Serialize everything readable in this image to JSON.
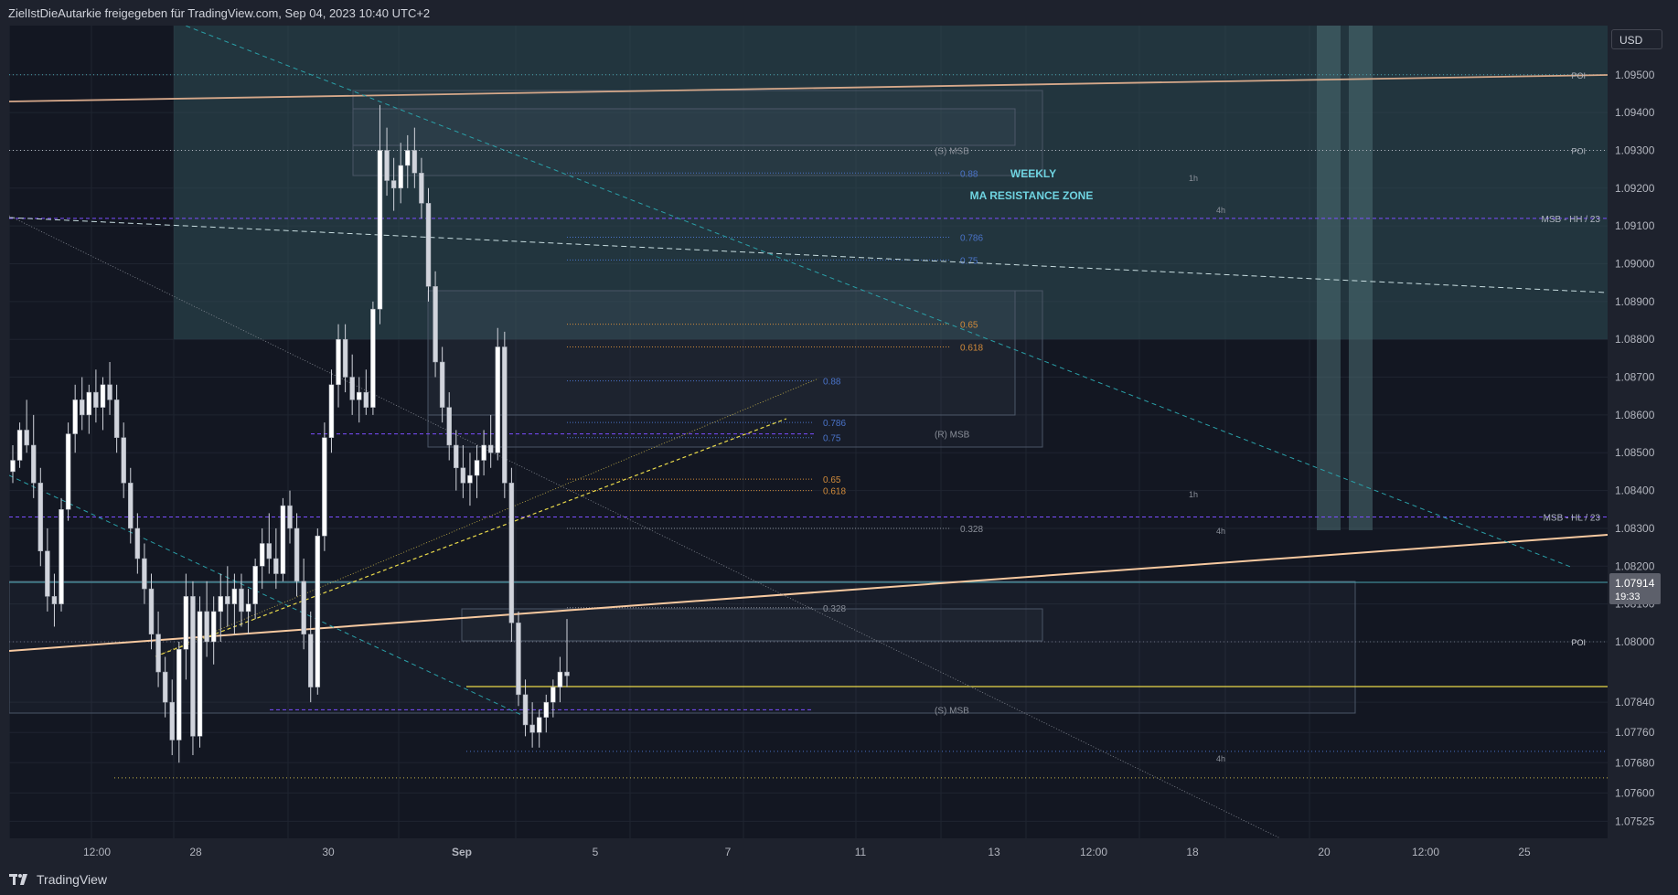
{
  "header": {
    "title": "ZielIstDieAutarkie freigegeben für TradingView.com, Sep 04, 2023 10:40 UTC+2"
  },
  "footer": {
    "brand": "TradingView"
  },
  "currency": "USD",
  "colors": {
    "background": "#131722",
    "panel": "#1e222d",
    "candle": "#d1d4dc",
    "zone_weekly": "#2f4f55",
    "trend_peach": "#f7c9a0",
    "yellow_dashed": "#e9d94a",
    "teal_dashed": "#2aa0a8",
    "purple_dashed": "#7b4dff",
    "blue_fib": "#4a73c8"
  },
  "chart_data": {
    "type": "candlestick",
    "symbol_currency": "USD",
    "price_axis": {
      "ticks": [
        "1.09500",
        "1.09400",
        "1.09300",
        "1.09200",
        "1.09100",
        "1.09000",
        "1.08900",
        "1.08800",
        "1.08700",
        "1.08600",
        "1.08500",
        "1.08400",
        "1.08300",
        "1.08200",
        "1.08100",
        "1.08000",
        "1.07840",
        "1.07760",
        "1.07680",
        "1.07600",
        "1.07525"
      ],
      "current_price": "1.07914",
      "countdown": "19:33"
    },
    "time_axis": {
      "ticks": [
        "12:00",
        "28",
        "30",
        "Sep",
        "5",
        "7",
        "11",
        "13",
        "12:00",
        "18",
        "20",
        "12:00",
        "25"
      ]
    },
    "ylim": [
      1.0748,
      1.0963
    ],
    "zones": [
      {
        "name": "weekly-ma-resistance",
        "label_line1": "WEEKLY",
        "label_line2": "MA RESISTANCE ZONE",
        "price_top": 1.0963,
        "price_bottom": 1.088
      }
    ],
    "annotations": [
      {
        "text": "POI",
        "price": 1.095
      },
      {
        "text": "POI",
        "price": 1.093
      },
      {
        "text": "MSB - HH / 23",
        "price": 1.0912
      },
      {
        "text": "MSB - HL / 23",
        "price": 1.0833
      },
      {
        "text": "POI",
        "price": 1.08
      },
      {
        "text": "(S) MSB",
        "price": 1.093
      },
      {
        "text": "(R) MSB",
        "price": 1.0855
      },
      {
        "text": "(S) MSB",
        "price": 1.0782
      },
      {
        "text": "1h"
      },
      {
        "text": "4h"
      },
      {
        "text": "1h"
      },
      {
        "text": "4h"
      },
      {
        "text": "4h"
      }
    ],
    "fib_levels_upper": [
      {
        "label": "0.88",
        "price": 1.0924
      },
      {
        "label": "0.786",
        "price": 1.0907
      },
      {
        "label": "0.75",
        "price": 1.0901
      },
      {
        "label": "0.65",
        "price": 1.0884
      },
      {
        "label": "0.618",
        "price": 1.0878
      },
      {
        "label": "0.328",
        "price": 1.083
      }
    ],
    "fib_levels_lower": [
      {
        "label": "0.88",
        "price": 1.0869
      },
      {
        "label": "0.786",
        "price": 1.0858
      },
      {
        "label": "0.75",
        "price": 1.0854
      },
      {
        "label": "0.65",
        "price": 1.0843
      },
      {
        "label": "0.618",
        "price": 1.084
      },
      {
        "label": "0.328",
        "price": 1.0809
      }
    ],
    "candles": [
      [
        1.0845,
        1.0852,
        1.0842,
        1.0848
      ],
      [
        1.0848,
        1.0858,
        1.0846,
        1.0856
      ],
      [
        1.0856,
        1.0864,
        1.085,
        1.0852
      ],
      [
        1.0852,
        1.086,
        1.0838,
        1.0842
      ],
      [
        1.0842,
        1.0846,
        1.082,
        1.0824
      ],
      [
        1.0824,
        1.083,
        1.0808,
        1.0812
      ],
      [
        1.0812,
        1.0818,
        1.0804,
        1.081
      ],
      [
        1.081,
        1.0838,
        1.0808,
        1.0835
      ],
      [
        1.0835,
        1.0858,
        1.0832,
        1.0855
      ],
      [
        1.0855,
        1.0868,
        1.085,
        1.0864
      ],
      [
        1.0864,
        1.087,
        1.0856,
        1.086
      ],
      [
        1.086,
        1.0868,
        1.0855,
        1.0866
      ],
      [
        1.0866,
        1.0872,
        1.0858,
        1.0862
      ],
      [
        1.0862,
        1.087,
        1.0856,
        1.0868
      ],
      [
        1.0868,
        1.0874,
        1.086,
        1.0864
      ],
      [
        1.0864,
        1.0868,
        1.085,
        1.0854
      ],
      [
        1.0854,
        1.0858,
        1.0838,
        1.0842
      ],
      [
        1.0842,
        1.0846,
        1.0826,
        1.083
      ],
      [
        1.083,
        1.0834,
        1.0818,
        1.0822
      ],
      [
        1.0822,
        1.0826,
        1.081,
        1.0814
      ],
      [
        1.0814,
        1.0818,
        1.0798,
        1.0802
      ],
      [
        1.0802,
        1.0808,
        1.0788,
        1.0792
      ],
      [
        1.0792,
        1.0796,
        1.078,
        1.0784
      ],
      [
        1.0784,
        1.079,
        1.077,
        1.0774
      ],
      [
        1.0774,
        1.08,
        1.0768,
        1.0798
      ],
      [
        1.0798,
        1.0818,
        1.079,
        1.0812
      ],
      [
        1.0812,
        1.0816,
        1.077,
        1.0775
      ],
      [
        1.0775,
        1.0812,
        1.0772,
        1.0808
      ],
      [
        1.0808,
        1.0816,
        1.0796,
        1.08
      ],
      [
        1.08,
        1.0812,
        1.0794,
        1.0808
      ],
      [
        1.0808,
        1.0818,
        1.08,
        1.0812
      ],
      [
        1.0812,
        1.082,
        1.0804,
        1.081
      ],
      [
        1.081,
        1.0818,
        1.0802,
        1.0814
      ],
      [
        1.0814,
        1.0818,
        1.0804,
        1.0808
      ],
      [
        1.0808,
        1.0814,
        1.0802,
        1.081
      ],
      [
        1.081,
        1.0822,
        1.0806,
        1.082
      ],
      [
        1.082,
        1.083,
        1.0814,
        1.0826
      ],
      [
        1.0826,
        1.0834,
        1.0818,
        1.0822
      ],
      [
        1.0822,
        1.083,
        1.0814,
        1.0818
      ],
      [
        1.0818,
        1.0838,
        1.0816,
        1.0836
      ],
      [
        1.0836,
        1.084,
        1.0826,
        1.083
      ],
      [
        1.083,
        1.0834,
        1.0812,
        1.0816
      ],
      [
        1.0816,
        1.0822,
        1.0798,
        1.0802
      ],
      [
        1.0802,
        1.0808,
        1.0784,
        1.0788
      ],
      [
        1.0788,
        1.083,
        1.0786,
        1.0828
      ],
      [
        1.0828,
        1.0858,
        1.0824,
        1.0854
      ],
      [
        1.0854,
        1.0872,
        1.085,
        1.0868
      ],
      [
        1.0868,
        1.0884,
        1.0862,
        1.088
      ],
      [
        1.088,
        1.0884,
        1.0866,
        1.087
      ],
      [
        1.087,
        1.0876,
        1.086,
        1.0864
      ],
      [
        1.0864,
        1.087,
        1.0858,
        1.0866
      ],
      [
        1.0866,
        1.0872,
        1.086,
        1.0862
      ],
      [
        1.0862,
        1.089,
        1.086,
        1.0888
      ],
      [
        1.0888,
        1.0942,
        1.0884,
        1.093
      ],
      [
        1.093,
        1.0936,
        1.0918,
        1.0922
      ],
      [
        1.0922,
        1.0928,
        1.0914,
        1.092
      ],
      [
        1.092,
        1.0932,
        1.0916,
        1.0926
      ],
      [
        1.0926,
        1.0934,
        1.092,
        1.093
      ],
      [
        1.093,
        1.0936,
        1.092,
        1.0924
      ],
      [
        1.0924,
        1.0928,
        1.0912,
        1.0916
      ],
      [
        1.0916,
        1.092,
        1.089,
        1.0894
      ],
      [
        1.0894,
        1.0898,
        1.087,
        1.0874
      ],
      [
        1.0874,
        1.0878,
        1.0858,
        1.0862
      ],
      [
        1.0862,
        1.0866,
        1.0848,
        1.0852
      ],
      [
        1.0852,
        1.0856,
        1.084,
        1.0846
      ],
      [
        1.0846,
        1.0852,
        1.0838,
        1.0842
      ],
      [
        1.0842,
        1.085,
        1.0836,
        1.0844
      ],
      [
        1.0844,
        1.0852,
        1.0838,
        1.0848
      ],
      [
        1.0848,
        1.0856,
        1.0844,
        1.0852
      ],
      [
        1.0852,
        1.086,
        1.0846,
        1.085
      ],
      [
        1.085,
        1.0883,
        1.0848,
        1.0878
      ],
      [
        1.0878,
        1.0882,
        1.0838,
        1.0842
      ],
      [
        1.0842,
        1.0846,
        1.08,
        1.0805
      ],
      [
        1.0805,
        1.0808,
        1.0783,
        1.0786
      ],
      [
        1.0786,
        1.079,
        1.0775,
        1.0778
      ],
      [
        1.0778,
        1.0784,
        1.0772,
        1.0776
      ],
      [
        1.0776,
        1.0782,
        1.0772,
        1.078
      ],
      [
        1.078,
        1.0786,
        1.0776,
        1.0784
      ],
      [
        1.0784,
        1.079,
        1.078,
        1.0788
      ],
      [
        1.0788,
        1.0796,
        1.0784,
        1.0792
      ],
      [
        1.0792,
        1.0806,
        1.0788,
        1.0791
      ]
    ]
  }
}
